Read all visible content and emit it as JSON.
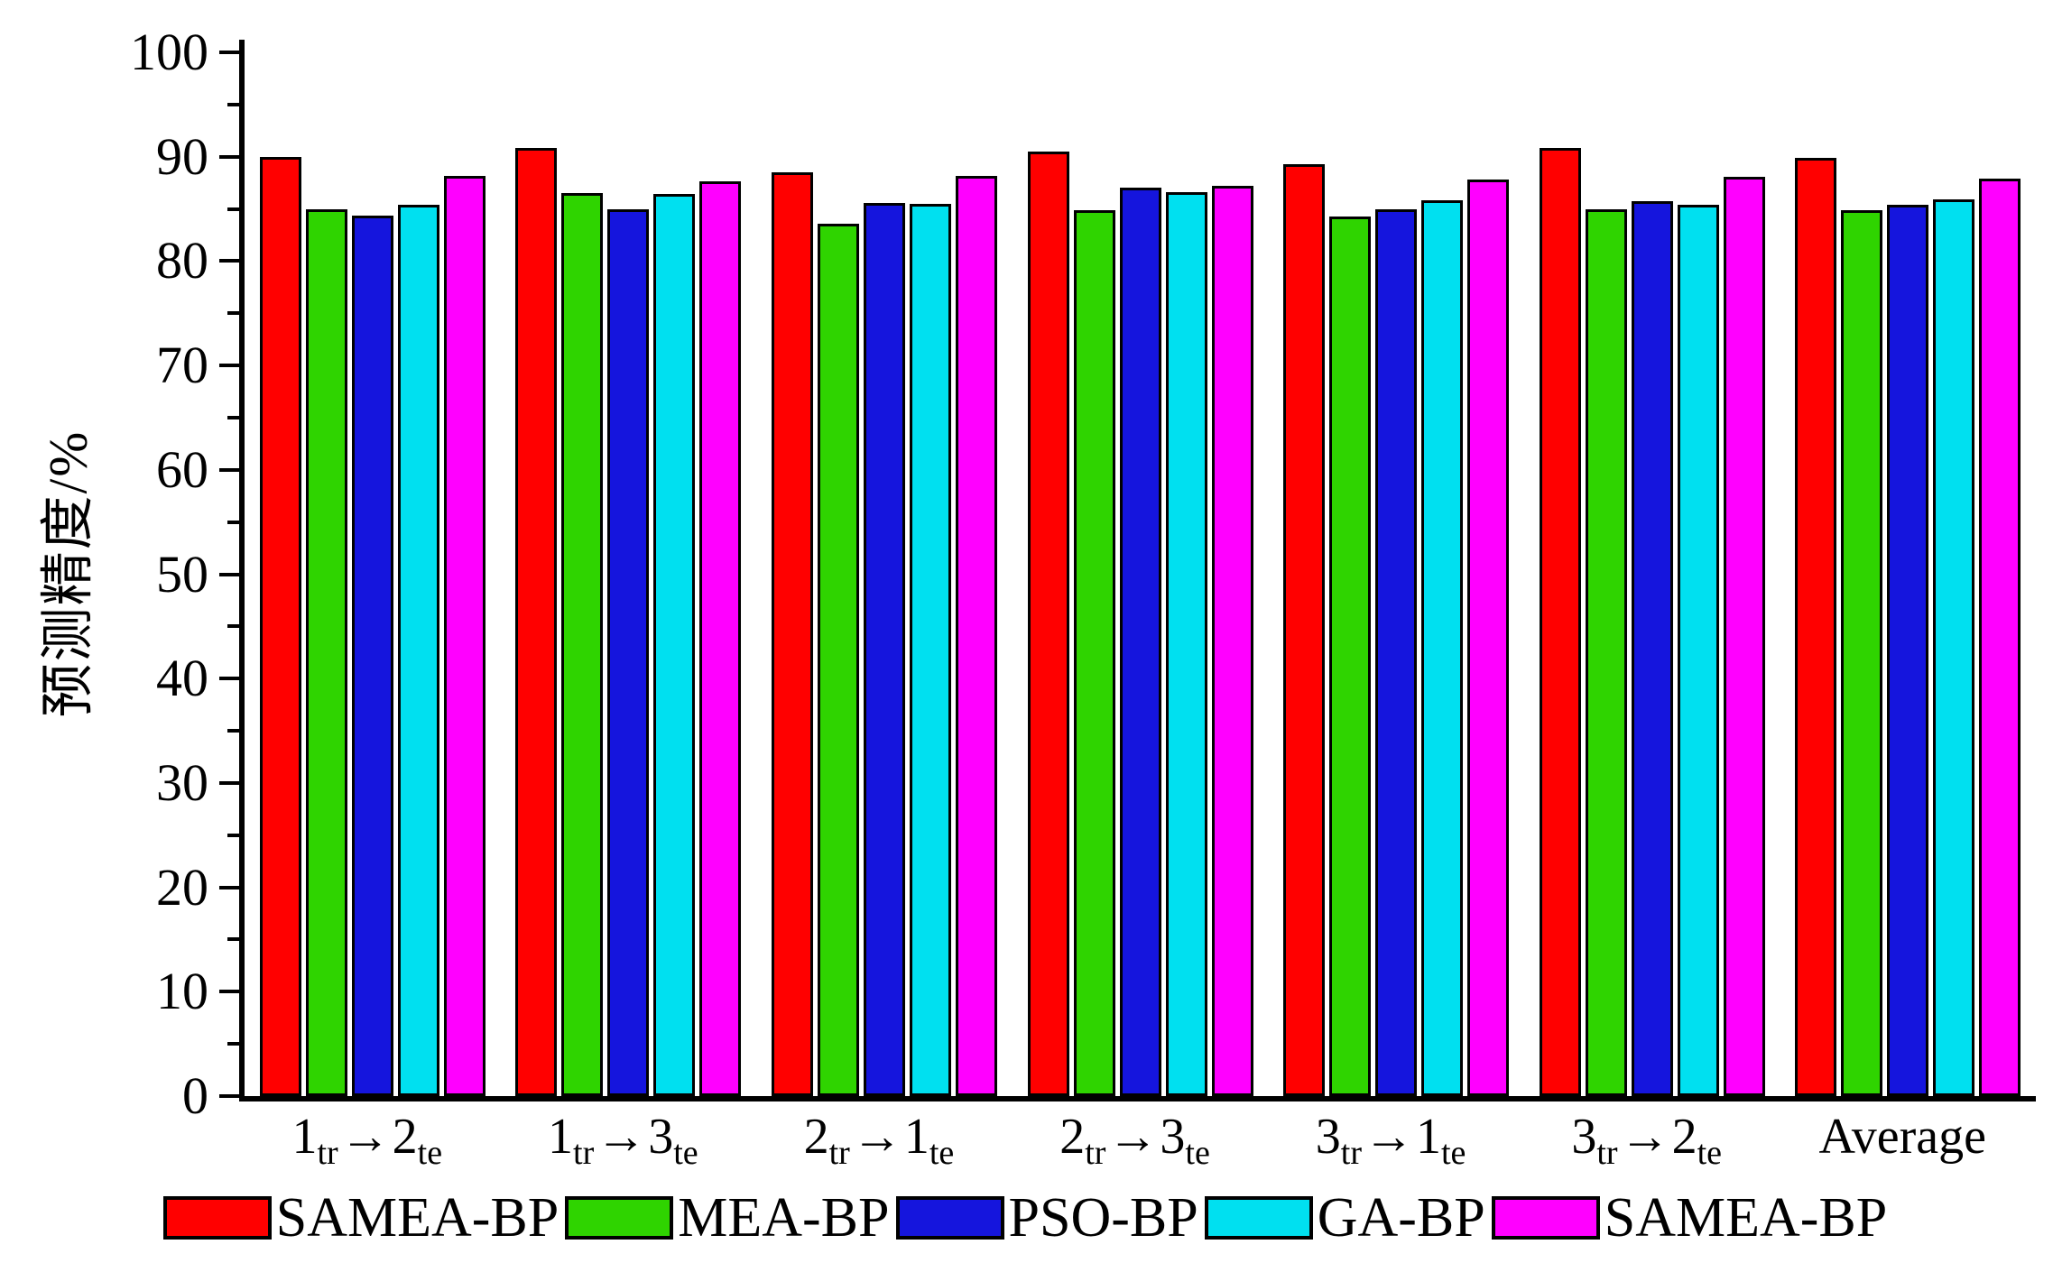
{
  "chart_data": {
    "type": "bar",
    "title": "",
    "ylabel": "预测精度/%",
    "xlabel": "",
    "ylim": [
      0,
      100
    ],
    "ytick_step": 10,
    "yminor_step": 5,
    "grid": false,
    "legend_position": "bottom",
    "categories": [
      {
        "a": "1",
        "asub": "tr",
        "arrow": "→",
        "b": "2",
        "bsub": "te"
      },
      {
        "a": "1",
        "asub": "tr",
        "arrow": "→",
        "b": "3",
        "bsub": "te"
      },
      {
        "a": "2",
        "asub": "tr",
        "arrow": "→",
        "b": "1",
        "bsub": "te"
      },
      {
        "a": "2",
        "asub": "tr",
        "arrow": "→",
        "b": "3",
        "bsub": "te"
      },
      {
        "a": "3",
        "asub": "tr",
        "arrow": "→",
        "b": "1",
        "bsub": "te"
      },
      {
        "a": "3",
        "asub": "tr",
        "arrow": "→",
        "b": "2",
        "bsub": "te"
      },
      {
        "text": "Average"
      }
    ],
    "series": [
      {
        "name": "SAMEA-BP",
        "color": "#ff0000",
        "values": [
          90.0,
          90.8,
          88.5,
          90.5,
          89.3,
          90.8,
          89.9
        ]
      },
      {
        "name": "MEA-BP",
        "color": "#2fd400",
        "values": [
          85.0,
          86.5,
          83.6,
          84.9,
          84.3,
          85.0,
          84.9
        ]
      },
      {
        "name": "PSO-BP",
        "color": "#1515dd",
        "values": [
          84.4,
          85.0,
          85.6,
          87.0,
          85.0,
          85.7,
          85.4
        ]
      },
      {
        "name": "GA-BP",
        "color": "#00e0f0",
        "values": [
          85.4,
          86.4,
          85.5,
          86.6,
          85.8,
          85.4,
          85.9
        ]
      },
      {
        "name": "SAMEA-BP",
        "color": "#ff00ff",
        "values": [
          88.2,
          87.6,
          88.2,
          87.2,
          87.8,
          88.1,
          87.9
        ]
      }
    ]
  }
}
